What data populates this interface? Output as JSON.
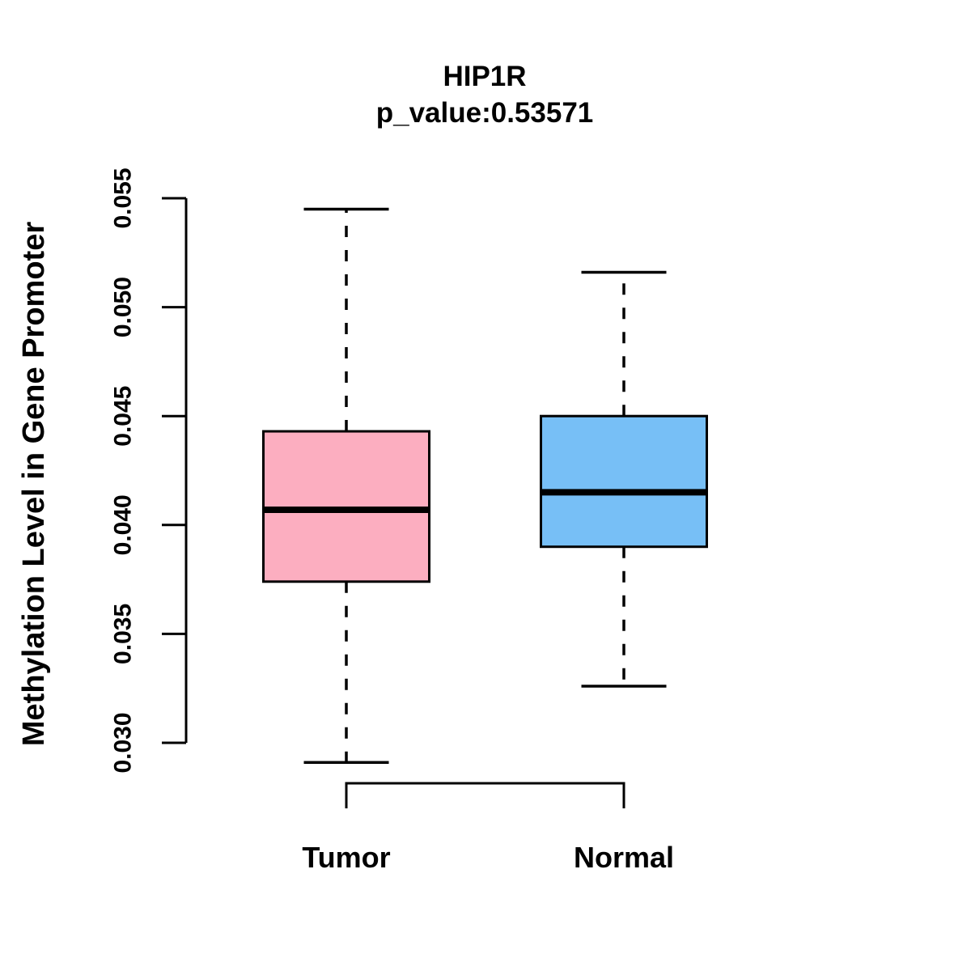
{
  "chart_data": {
    "type": "boxplot",
    "title": "HIP1R",
    "subtitle": "p_value:0.53571",
    "ylabel": "Methylation Level in Gene Promoter",
    "xlabel": "",
    "ylim": [
      0.03,
      0.055
    ],
    "yticks": [
      0.03,
      0.035,
      0.04,
      0.045,
      0.05,
      0.055
    ],
    "ytick_labels": [
      "0.030",
      "0.035",
      "0.040",
      "0.045",
      "0.050",
      "0.055"
    ],
    "grid": false,
    "legend_position": "none",
    "groups": [
      {
        "label": "Tumor",
        "fill": "#FCAEC0",
        "stats": {
          "lower_whisker": 0.0291,
          "q1": 0.0374,
          "median": 0.0407,
          "q3": 0.0443,
          "upper_whisker": 0.0545
        }
      },
      {
        "label": "Normal",
        "fill": "#77BFF6",
        "stats": {
          "lower_whisker": 0.0326,
          "q1": 0.039,
          "median": 0.0415,
          "q3": 0.045,
          "upper_whisker": 0.0516
        }
      }
    ],
    "colors": {
      "stroke": "#000000",
      "median": "#000000",
      "background": "#FFFFFF",
      "tumor_fill": "#FCAEC0",
      "normal_fill": "#77BFF6"
    }
  }
}
